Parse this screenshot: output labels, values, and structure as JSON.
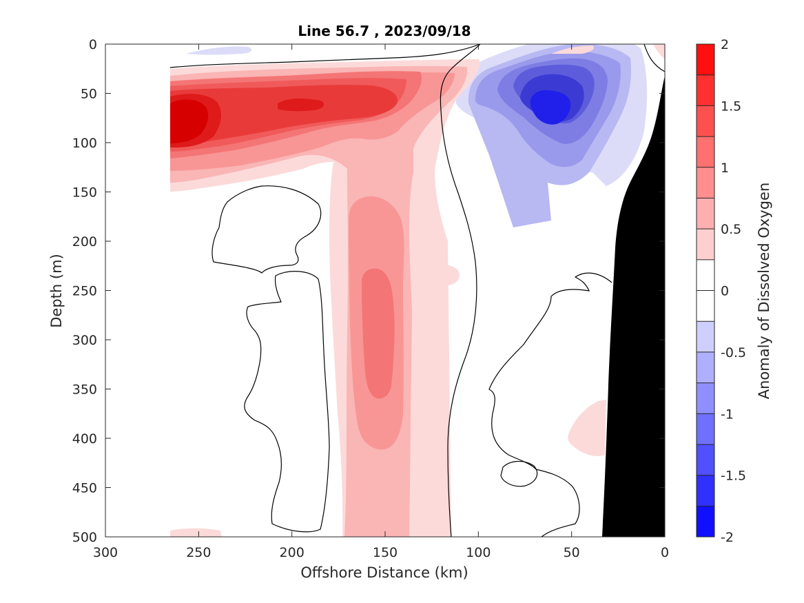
{
  "chart_data": {
    "type": "heatmap",
    "subtype": "filled-contour-section",
    "title": "Line 56.7 , 2023/09/18",
    "xlabel": "Offshore Distance (km)",
    "ylabel": "Depth (m)",
    "colorbar_label": "Anomaly of Dissolved Oxygen",
    "xlim": [
      300,
      0
    ],
    "x_reversed": true,
    "ylim": [
      0,
      500
    ],
    "y_reversed": true,
    "x_ticks": [
      "300",
      "250",
      "200",
      "150",
      "100",
      "50",
      "0"
    ],
    "y_ticks": [
      "0",
      "50",
      "100",
      "150",
      "200",
      "250",
      "300",
      "350",
      "400",
      "450",
      "500"
    ],
    "colorbar_ticks": [
      "2",
      "1.5",
      "1",
      "0.5",
      "0",
      "-0.5",
      "-1",
      "-1.5",
      "-2"
    ],
    "color_range": [
      -2,
      2
    ],
    "contour_interval": 0.25,
    "colormap": "blue-white-red",
    "bathymetry_color": "#000000",
    "features": [
      {
        "name": "positive anomaly core",
        "x_km": 255,
        "depth_m": 80,
        "value": 2.0
      },
      {
        "name": "positive anomaly tongue",
        "x_km": 200,
        "depth_m": 65,
        "value": 1.8
      },
      {
        "name": "subsurface positive column",
        "x_km": 150,
        "depth_m": 300,
        "value": 1.0
      },
      {
        "name": "negative anomaly core",
        "x_km": 62,
        "depth_m": 65,
        "value": -1.6
      }
    ]
  }
}
